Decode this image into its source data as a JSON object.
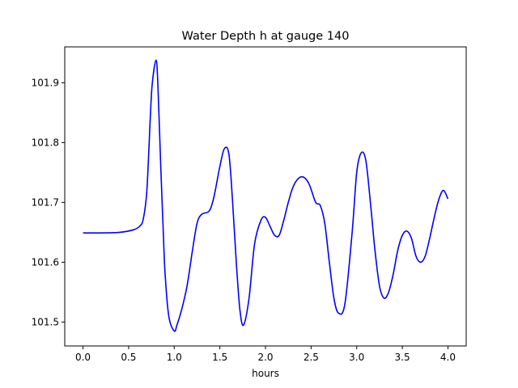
{
  "chart_data": {
    "type": "line",
    "title": "Water Depth h at gauge 140",
    "xlabel": "hours",
    "ylabel": "",
    "xlim": [
      -0.2,
      4.2
    ],
    "ylim": [
      101.46,
      101.96
    ],
    "xticks": [
      0.0,
      0.5,
      1.0,
      1.5,
      2.0,
      2.5,
      3.0,
      3.5,
      4.0
    ],
    "xtick_labels": [
      "0.0",
      "0.5",
      "1.0",
      "1.5",
      "2.0",
      "2.5",
      "3.0",
      "3.5",
      "4.0"
    ],
    "yticks": [
      101.5,
      101.6,
      101.7,
      101.8,
      101.9
    ],
    "ytick_labels": [
      "101.5",
      "101.6",
      "101.7",
      "101.8",
      "101.9"
    ],
    "grid": false,
    "series": [
      {
        "color": "#0000ff",
        "x": [
          0.0,
          0.2,
          0.4,
          0.55,
          0.62,
          0.66,
          0.7,
          0.74,
          0.76,
          0.8,
          0.82,
          0.85,
          0.88,
          0.9,
          0.94,
          1.0,
          1.03,
          1.08,
          1.14,
          1.2,
          1.25,
          1.3,
          1.38,
          1.42,
          1.45,
          1.5,
          1.55,
          1.6,
          1.64,
          1.68,
          1.72,
          1.76,
          1.82,
          1.88,
          1.95,
          2.0,
          2.05,
          2.1,
          2.15,
          2.2,
          2.25,
          2.3,
          2.36,
          2.42,
          2.48,
          2.55,
          2.6,
          2.65,
          2.7,
          2.75,
          2.8,
          2.87,
          2.95,
          3.0,
          3.05,
          3.1,
          3.15,
          3.2,
          3.25,
          3.3,
          3.35,
          3.4,
          3.45,
          3.5,
          3.55,
          3.6,
          3.65,
          3.7,
          3.75,
          3.8,
          3.85,
          3.9,
          3.95,
          4.0
        ],
        "y": [
          101.649,
          101.649,
          101.65,
          101.654,
          101.66,
          101.672,
          101.72,
          101.85,
          101.9,
          101.938,
          101.9,
          101.77,
          101.65,
          101.58,
          101.51,
          101.485,
          101.495,
          101.52,
          101.56,
          101.62,
          101.665,
          101.68,
          101.685,
          101.7,
          101.72,
          101.76,
          101.79,
          101.78,
          101.7,
          101.6,
          101.52,
          101.495,
          101.54,
          101.63,
          101.67,
          101.675,
          101.66,
          101.645,
          101.645,
          101.67,
          101.7,
          101.725,
          101.74,
          101.742,
          101.73,
          101.7,
          101.695,
          101.665,
          101.6,
          101.54,
          101.515,
          101.53,
          101.65,
          101.75,
          101.783,
          101.77,
          101.7,
          101.62,
          101.56,
          101.54,
          101.55,
          101.58,
          101.62,
          101.645,
          101.652,
          101.64,
          101.61,
          101.6,
          101.61,
          101.64,
          101.675,
          101.705,
          101.72,
          101.706
        ]
      }
    ]
  }
}
